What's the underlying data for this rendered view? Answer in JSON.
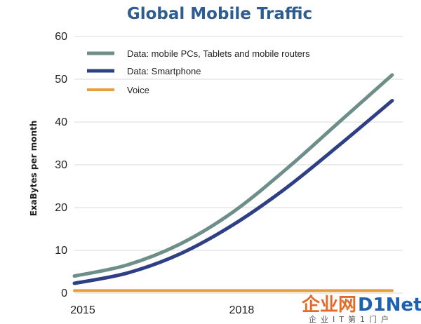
{
  "chart_data": {
    "type": "line",
    "title": "Global Mobile Traffic",
    "xlabel": "",
    "ylabel": "ExaBytes per month",
    "x": [
      2015,
      2016,
      2017,
      2018,
      2019,
      2020,
      2021
    ],
    "x_ticks": [
      "2015",
      "2018"
    ],
    "y_ticks": [
      "0",
      "10",
      "20",
      "30",
      "40",
      "50",
      "60"
    ],
    "xlim": [
      2015,
      2021.2
    ],
    "ylim": [
      0,
      60
    ],
    "grid": "horizontal",
    "legend": "top-left",
    "series": [
      {
        "name": "Data: mobile PCs, Tablets and mobile routers",
        "color": "#6e8f89",
        "values": [
          4,
          6.6,
          11.5,
          19,
          29,
          40,
          51
        ]
      },
      {
        "name": "Data: Smartphone",
        "color": "#2f3f86",
        "values": [
          2.3,
          4.7,
          9.2,
          16,
          24.6,
          34.6,
          45
        ]
      },
      {
        "name": "Voice",
        "color": "#e3a03b",
        "values": [
          0.6,
          0.6,
          0.6,
          0.6,
          0.6,
          0.6,
          0.6
        ]
      }
    ]
  },
  "watermark": {
    "brand_cn": "企业网",
    "brand_en": "D1Net",
    "subtitle": "企业IT第1门户",
    "accent": "#e46a2a",
    "brand_color": "#1d62b0"
  }
}
